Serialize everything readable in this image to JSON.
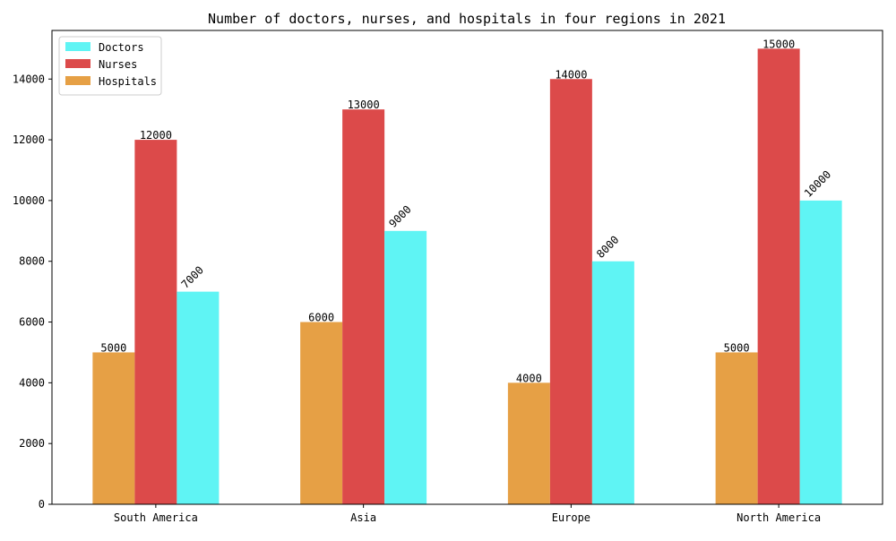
{
  "chart_data": {
    "type": "bar",
    "title": "Number of doctors, nurses, and hospitals in four regions in 2021",
    "xlabel": "",
    "ylabel": "",
    "categories": [
      "South America",
      "Asia",
      "Europe",
      "North America"
    ],
    "series": [
      {
        "name": "Hospitals",
        "color": "#e6a045",
        "values": [
          5000,
          6000,
          4000,
          5000
        ]
      },
      {
        "name": "Nurses",
        "color": "#dc4a4a",
        "values": [
          12000,
          13000,
          14000,
          15000
        ]
      },
      {
        "name": "Doctors",
        "color": "#5ff4f4",
        "values": [
          7000,
          9000,
          8000,
          10000
        ]
      }
    ],
    "legend_order": [
      "Doctors",
      "Nurses",
      "Hospitals"
    ],
    "legend_position": "upper-left",
    "ylim": [
      0,
      15600
    ],
    "yticks": [
      0,
      2000,
      4000,
      6000,
      8000,
      10000,
      12000,
      14000
    ],
    "grid": false,
    "rotated_label_series": [
      "Doctors"
    ]
  }
}
